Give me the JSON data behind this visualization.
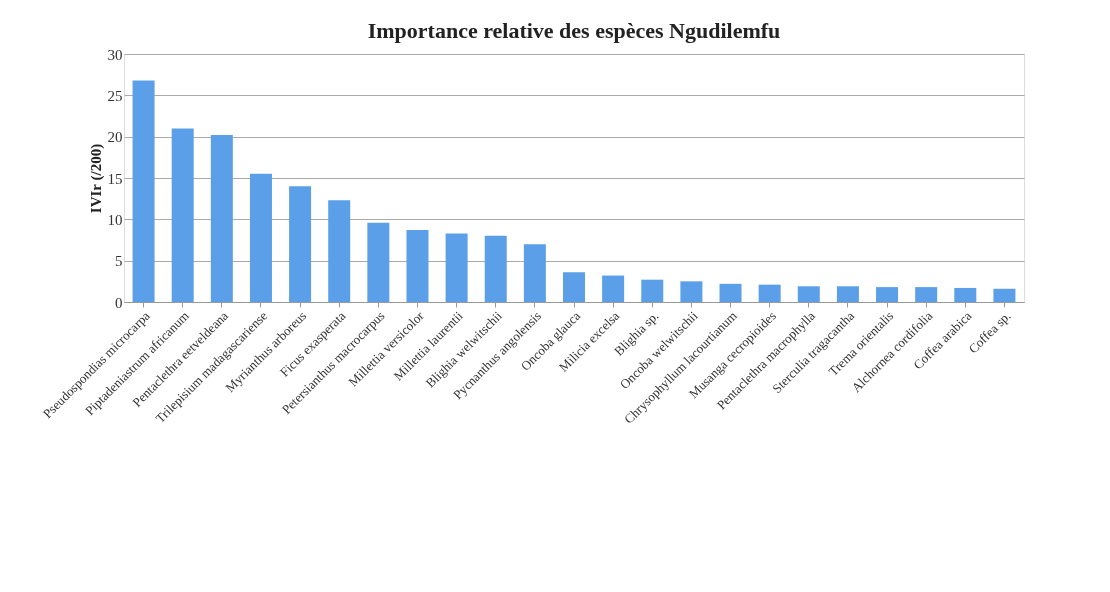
{
  "chart_data": {
    "type": "bar",
    "title": "Importance relative des espèces Ngudilemfu",
    "ylabel": "IVIr (/200)",
    "categories": [
      "Pseudospondias microcarpa",
      "Piptadeniastrum africanum",
      "Pentaclethra eetveldeana",
      "Trilepisium madagascariense",
      "Myrianthus arboreus",
      "Ficus exasperata",
      "Petersianthus macrocarpus",
      "Millettia versicolor",
      "Millettia laurentii",
      "Blighia welwitschii",
      "Pycnanthus angolensis",
      "Oncoba glauca",
      "Milicia excelsa",
      "Blighia sp.",
      "Oncoba welwitschii",
      "Chrysophyllum lacourtianum",
      "Musanga cecropioides",
      "Pentaclethra macrophylla",
      "Sterculia tragacantha",
      "Trema orientalis",
      "Alchornea cordifolia",
      "Coffea arabica",
      "Coffea sp."
    ],
    "values": [
      26.8,
      21.0,
      20.2,
      15.5,
      14.0,
      12.3,
      9.6,
      8.7,
      8.3,
      8.0,
      7.0,
      3.6,
      3.2,
      2.7,
      2.5,
      2.2,
      2.1,
      1.9,
      1.9,
      1.8,
      1.8,
      1.7,
      1.6
    ],
    "color": "#5b9fe8",
    "ylim": [
      0,
      30
    ],
    "yticks": [
      0,
      5,
      10,
      15,
      20,
      25,
      30
    ],
    "grid": "y"
  }
}
